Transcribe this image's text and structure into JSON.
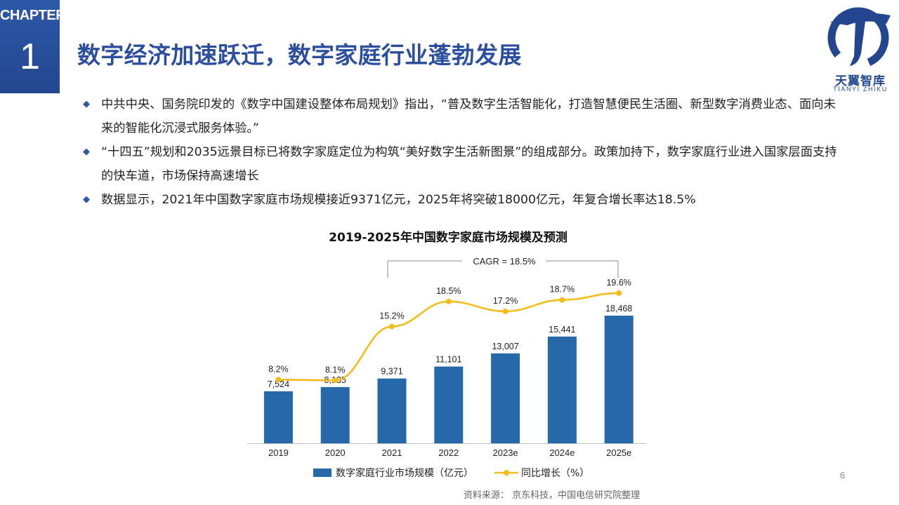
{
  "chapter": {
    "label": "CHAPTER",
    "number": "1"
  },
  "title": "数字经济加速跃迁，数字家庭行业蓬勃发展",
  "logo": {
    "name": "天翼智库",
    "subtitle": "TIANYI ZHIKU"
  },
  "bullets": [
    "中共中央、国务院印发的《数字中国建设整体布局规划》指出，“普及数字生活智能化，打造智慧便民生活圈、新型数字消费业态、面向未来的智能化沉浸式服务体验。”",
    "“十四五”规划和2035远景目标已将数字家庭定位为构筑“美好数字生活新图景”的组成部分。政策加持下，数字家庭行业进入国家层面支持的快车道，市场保持高速增长",
    "数据显示，2021年中国数字家庭市场规模接近9371亿元，2025年将突破18000亿元，年复合增长率达18.5%"
  ],
  "chart_data": {
    "type": "bar",
    "title": "2019-2025年中国数字家庭市场规模及预测",
    "categories": [
      "2019",
      "2020",
      "2021",
      "2022",
      "2023e",
      "2024e",
      "2025e"
    ],
    "series": [
      {
        "name": "数字家庭行业市场规模（亿元）",
        "type": "bar",
        "values": [
          7524,
          8135,
          9371,
          11101,
          13007,
          15441,
          18468
        ],
        "labels": [
          "7,524",
          "8,135",
          "9,371",
          "11,101",
          "13,007",
          "15,441",
          "18,468"
        ],
        "color": "#2669aa"
      },
      {
        "name": "同比增长（%）",
        "type": "line",
        "values": [
          8.2,
          8.1,
          15.2,
          18.5,
          17.2,
          18.7,
          19.6
        ],
        "labels": [
          "8.2%",
          "8.1%",
          "15.2%",
          "18.5%",
          "17.2%",
          "18.7%",
          "19.6%"
        ],
        "color": "#f2bd1d"
      }
    ],
    "annotation": "CAGR = 18.5%",
    "legend_position": "bottom",
    "grid": false
  },
  "source": "资料来源：  京东科技，中国电信研究院整理",
  "page_number": "6"
}
